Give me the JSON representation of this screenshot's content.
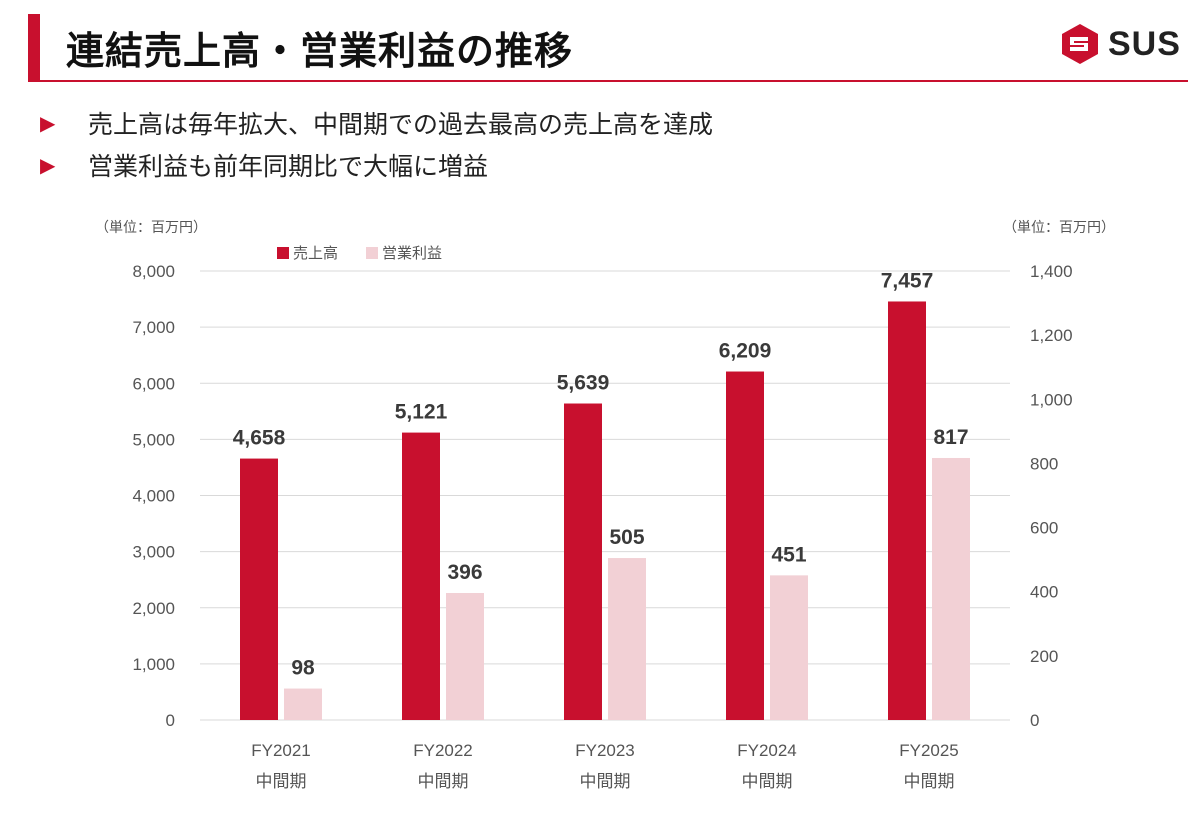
{
  "header": {
    "title": "連結売上高・営業利益の推移",
    "logo_text": "SUS"
  },
  "bullets": [
    "売上高は毎年拡大、中間期での過去最高の売上高を達成",
    "営業利益も前年同期比で大幅に増益"
  ],
  "colors": {
    "accent": "#c8102e",
    "sales": "#c8102e",
    "profit": "#f2d0d5",
    "grid": "#d9d9d9"
  },
  "chart_data": {
    "type": "bar",
    "categories": [
      "FY2021\n中間期",
      "FY2022\n中間期",
      "FY2023\n中間期",
      "FY2024\n中間期",
      "FY2025\n中間期"
    ],
    "series": [
      {
        "name": "売上高",
        "axis": "left",
        "values": [
          4658,
          5121,
          5639,
          6209,
          7457
        ],
        "labels": [
          "4,658",
          "5,121",
          "5,639",
          "6,209",
          "7,457"
        ]
      },
      {
        "name": "営業利益",
        "axis": "right",
        "values": [
          98,
          396,
          505,
          451,
          817
        ],
        "labels": [
          "98",
          "396",
          "505",
          "451",
          "817"
        ]
      }
    ],
    "left_axis": {
      "unit": "（単位：百万円）",
      "range": [
        0,
        8000
      ],
      "ticks": [
        "0",
        "1,000",
        "2,000",
        "3,000",
        "4,000",
        "5,000",
        "6,000",
        "7,000",
        "8,000"
      ]
    },
    "right_axis": {
      "unit": "（単位：百万円）",
      "range": [
        0,
        1400
      ],
      "ticks": [
        "0",
        "200",
        "400",
        "600",
        "800",
        "1,000",
        "1,200",
        "1,400"
      ]
    },
    "legend": {
      "placement": "top-left"
    },
    "grid": true
  }
}
